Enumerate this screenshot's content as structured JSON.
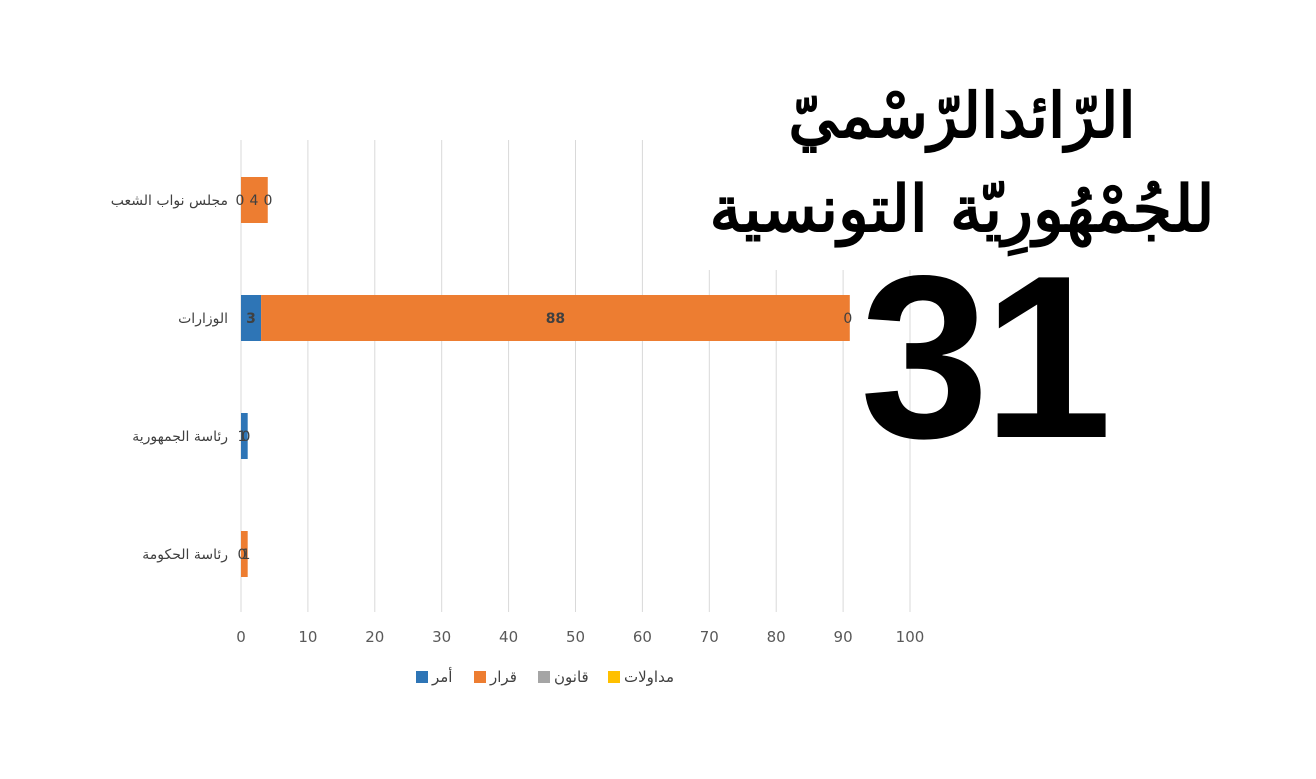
{
  "masthead": {
    "line1": "الرّائدالرّسْميّ",
    "line2": "للجُمْهُورِيّة التونسية",
    "issue_number": "31"
  },
  "chart_data": {
    "type": "bar",
    "orientation": "horizontal",
    "stacked": true,
    "categories": [
      "مجلس نواب الشعب",
      "الوزارات",
      "رئاسة الجمهورية",
      "رئاسة الحكومة"
    ],
    "series": [
      {
        "name": "أمر",
        "color": "#2E75B6",
        "values": [
          0,
          3,
          1,
          0
        ]
      },
      {
        "name": "قرار",
        "color": "#ED7D31",
        "values": [
          4,
          88,
          0,
          1
        ]
      },
      {
        "name": "قانون",
        "color": "#A5A5A5",
        "values": [
          0,
          0,
          0,
          0
        ]
      },
      {
        "name": "مداولات",
        "color": "#FFC000",
        "values": [
          0,
          0,
          0,
          0
        ]
      }
    ],
    "data_labels": [
      [
        "0",
        "4",
        "0"
      ],
      [
        "3",
        "88",
        "0"
      ],
      [
        "1",
        "0"
      ],
      [
        "0",
        "1"
      ]
    ],
    "xlim": [
      0,
      100
    ],
    "x_ticks": [
      0,
      10,
      20,
      30,
      40,
      50,
      60,
      70,
      80,
      90,
      100
    ],
    "grid": true,
    "legend": "bottom",
    "title": "",
    "xlabel": "",
    "ylabel": ""
  }
}
